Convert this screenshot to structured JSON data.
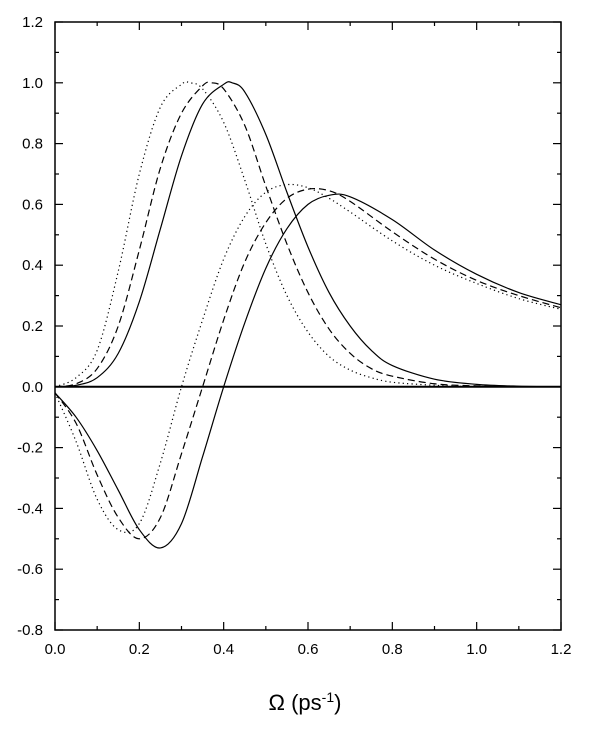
{
  "chart_data": {
    "type": "line",
    "title": "",
    "xlabel_symbol": "Ω",
    "xlabel_unit_open": " (ps",
    "xlabel_unit_exp": "-1",
    "xlabel_unit_close": ")",
    "ylabel": "",
    "xlim": [
      0.0,
      1.2
    ],
    "ylim": [
      -0.8,
      1.2
    ],
    "x_ticks": [
      "0.0",
      "0.2",
      "0.4",
      "0.6",
      "0.8",
      "1.0",
      "1.2"
    ],
    "y_ticks": [
      "1.2",
      "1.0",
      "0.8",
      "0.6",
      "0.4",
      "0.2",
      "0.0",
      "-0.2",
      "-0.4",
      "-0.6",
      "-0.8"
    ],
    "grid": false,
    "legend": "none",
    "zero_line": true,
    "series": [
      {
        "group": "peak-one",
        "style": "dotted",
        "x": [
          0.0,
          0.05,
          0.1,
          0.15,
          0.2,
          0.25,
          0.3,
          0.32,
          0.35,
          0.4,
          0.45,
          0.5,
          0.55,
          0.6,
          0.65,
          0.7,
          0.75,
          0.8,
          0.9,
          1.0,
          1.1,
          1.2
        ],
        "y": [
          0.0,
          0.03,
          0.12,
          0.38,
          0.7,
          0.92,
          0.995,
          1.0,
          0.98,
          0.87,
          0.68,
          0.47,
          0.3,
          0.18,
          0.1,
          0.055,
          0.03,
          0.015,
          0.005,
          0.0,
          0.0,
          0.0
        ]
      },
      {
        "group": "peak-one",
        "style": "dashed",
        "x": [
          0.0,
          0.05,
          0.1,
          0.15,
          0.2,
          0.25,
          0.3,
          0.35,
          0.37,
          0.4,
          0.45,
          0.5,
          0.55,
          0.6,
          0.65,
          0.7,
          0.75,
          0.8,
          0.9,
          1.0,
          1.1,
          1.2
        ],
        "y": [
          0.0,
          0.01,
          0.06,
          0.2,
          0.45,
          0.72,
          0.9,
          0.99,
          1.0,
          0.98,
          0.86,
          0.66,
          0.47,
          0.31,
          0.19,
          0.11,
          0.06,
          0.035,
          0.01,
          0.003,
          0.0,
          0.0
        ]
      },
      {
        "group": "peak-one",
        "style": "solid",
        "x": [
          0.0,
          0.05,
          0.1,
          0.15,
          0.2,
          0.25,
          0.3,
          0.35,
          0.4,
          0.42,
          0.45,
          0.5,
          0.55,
          0.6,
          0.65,
          0.7,
          0.75,
          0.8,
          0.9,
          1.0,
          1.1,
          1.2
        ],
        "y": [
          0.0,
          0.005,
          0.03,
          0.11,
          0.28,
          0.52,
          0.76,
          0.93,
          0.995,
          1.0,
          0.97,
          0.83,
          0.64,
          0.46,
          0.31,
          0.2,
          0.12,
          0.07,
          0.025,
          0.008,
          0.002,
          0.0
        ]
      },
      {
        "group": "peak-two",
        "style": "dotted",
        "x": [
          0.0,
          0.05,
          0.1,
          0.15,
          0.2,
          0.25,
          0.3,
          0.35,
          0.4,
          0.45,
          0.5,
          0.55,
          0.6,
          0.65,
          0.7,
          0.8,
          0.9,
          1.0,
          1.1,
          1.2
        ],
        "y": [
          -0.02,
          -0.18,
          -0.37,
          -0.47,
          -0.45,
          -0.25,
          0.0,
          0.22,
          0.42,
          0.56,
          0.64,
          0.665,
          0.655,
          0.62,
          0.575,
          0.48,
          0.4,
          0.34,
          0.29,
          0.255
        ]
      },
      {
        "group": "peak-two",
        "style": "dashed",
        "x": [
          0.0,
          0.05,
          0.1,
          0.15,
          0.2,
          0.25,
          0.3,
          0.35,
          0.4,
          0.45,
          0.5,
          0.55,
          0.6,
          0.65,
          0.7,
          0.8,
          0.9,
          1.0,
          1.1,
          1.2
        ],
        "y": [
          -0.02,
          -0.12,
          -0.29,
          -0.43,
          -0.5,
          -0.43,
          -0.22,
          0.0,
          0.22,
          0.41,
          0.54,
          0.62,
          0.65,
          0.645,
          0.61,
          0.51,
          0.42,
          0.35,
          0.3,
          0.26
        ]
      },
      {
        "group": "peak-two",
        "style": "solid",
        "x": [
          0.0,
          0.05,
          0.1,
          0.15,
          0.2,
          0.25,
          0.3,
          0.35,
          0.4,
          0.45,
          0.5,
          0.55,
          0.6,
          0.65,
          0.7,
          0.8,
          0.9,
          1.0,
          1.1,
          1.2
        ],
        "y": [
          -0.02,
          -0.1,
          -0.21,
          -0.34,
          -0.47,
          -0.53,
          -0.45,
          -0.23,
          0.0,
          0.21,
          0.39,
          0.52,
          0.6,
          0.63,
          0.625,
          0.55,
          0.45,
          0.37,
          0.31,
          0.27
        ]
      }
    ]
  }
}
